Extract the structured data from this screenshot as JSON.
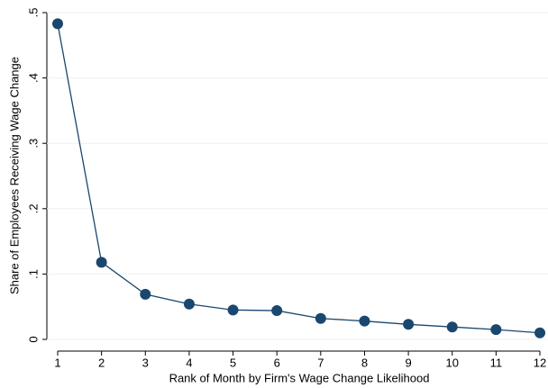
{
  "chart_data": {
    "type": "line",
    "xlabel": "Rank of Month by Firm's Wage Change Likelihood",
    "ylabel": "Share of Employees Receiving Wage Change",
    "x": [
      1,
      2,
      3,
      4,
      5,
      6,
      7,
      8,
      9,
      10,
      11,
      12
    ],
    "series": [
      {
        "name": "Share",
        "color": "#1a476f",
        "values": [
          0.483,
          0.118,
          0.069,
          0.054,
          0.045,
          0.044,
          0.032,
          0.028,
          0.023,
          0.019,
          0.015,
          0.01
        ]
      }
    ],
    "xlim": [
      1,
      12
    ],
    "xticks": [
      1,
      2,
      3,
      4,
      5,
      6,
      7,
      8,
      9,
      10,
      11,
      12
    ],
    "ylim": [
      0,
      0.5
    ],
    "yticks": [
      0,
      {
        "value": 0.1,
        "label": ".1"
      },
      {
        "value": 0.2,
        "label": ".2"
      },
      {
        "value": 0.3,
        "label": ".3"
      },
      {
        "value": 0.4,
        "label": ".4"
      },
      {
        "value": 0.5,
        "label": ".5"
      }
    ],
    "grid": true
  }
}
